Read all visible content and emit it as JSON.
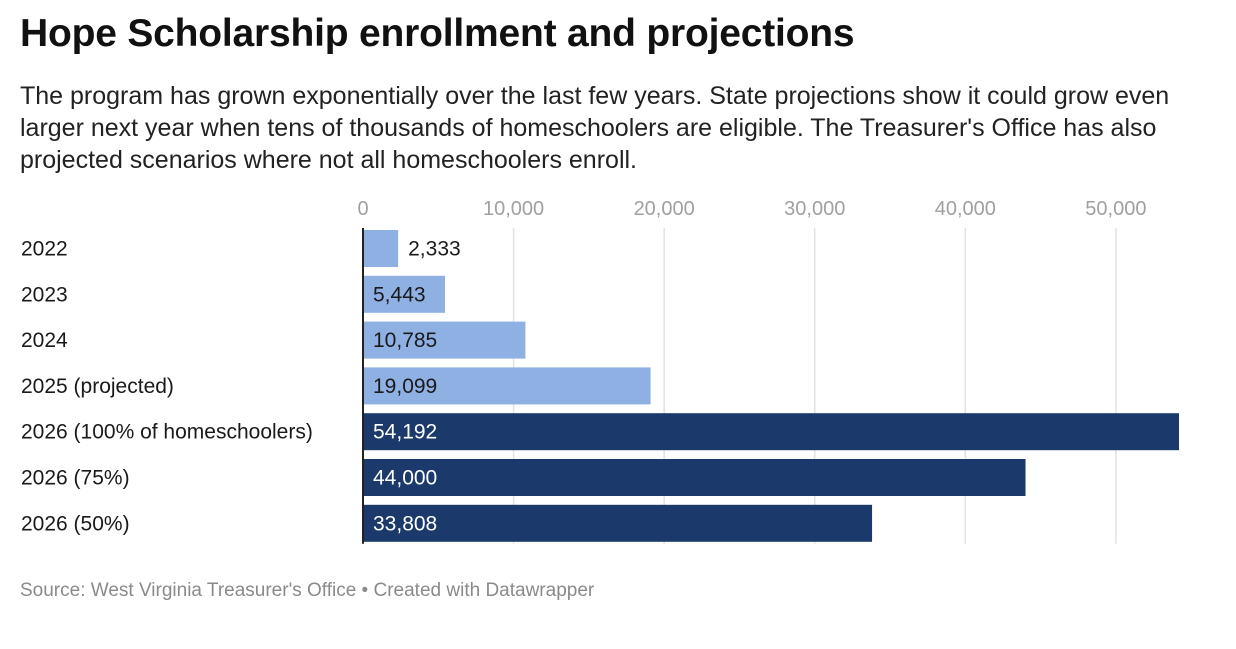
{
  "title": "Hope Scholarship enrollment and projections",
  "subtitle": "The program has grown exponentially over the last few years. State projections show it could grow even larger next year when tens of thousands of homeschoolers are eligible. The Treasurer's Office has also projected scenarios where not all homeschoolers enroll.",
  "footer": {
    "source": "Source: West Virginia Treasurer's Office",
    "separator": " • ",
    "credit": "Created with Datawrapper"
  },
  "chart_data": {
    "type": "bar",
    "orientation": "horizontal",
    "categories": [
      "2022",
      "2023",
      "2024",
      "2025 (projected)",
      "2026 (100% of homeschoolers)",
      "2026 (75%)",
      "2026 (50%)"
    ],
    "values": [
      2333,
      5443,
      10785,
      19099,
      54192,
      44000,
      33808
    ],
    "value_labels": [
      "2,333",
      "5,443",
      "10,785",
      "19,099",
      "54,192",
      "44,000",
      "33,808"
    ],
    "bar_colors": [
      "#8fb0e3",
      "#8fb0e3",
      "#8fb0e3",
      "#8fb0e3",
      "#1b3a6b",
      "#1b3a6b",
      "#1b3a6b"
    ],
    "xlim": [
      0,
      54192
    ],
    "x_ticks": [
      0,
      10000,
      20000,
      30000,
      40000,
      50000
    ],
    "x_tick_labels": [
      "0",
      "10,000",
      "20,000",
      "30,000",
      "40,000",
      "50,000"
    ],
    "grid": true,
    "axis_position": "top",
    "xlabel": "",
    "ylabel": ""
  }
}
